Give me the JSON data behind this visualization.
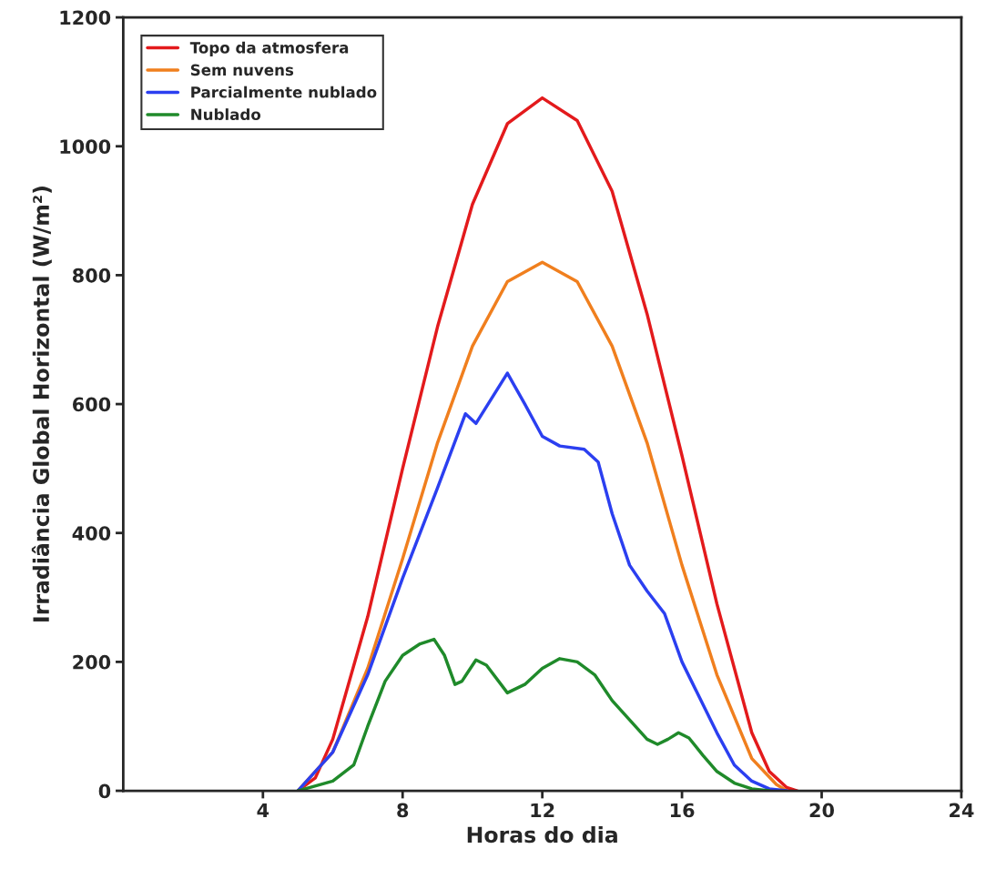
{
  "chart_data": {
    "type": "line",
    "xlabel": "Horas do dia",
    "ylabel": "Irradiância Global Horizontal (W/m²)",
    "xlim": [
      0,
      24
    ],
    "ylim": [
      0,
      1200
    ],
    "xticks": [
      4,
      8,
      12,
      16,
      20,
      24
    ],
    "yticks": [
      0,
      200,
      400,
      600,
      800,
      1000,
      1200
    ],
    "grid": false,
    "legend": "top left",
    "marker": "none",
    "line_style": "solid",
    "series": [
      {
        "name": "Topo da atmosfera",
        "color": "#e31a1c",
        "x": [
          5,
          5.5,
          6,
          7,
          8,
          9,
          10,
          11,
          12,
          13,
          14,
          15,
          16,
          17,
          18,
          18.5,
          19,
          19.3
        ],
        "values": [
          0,
          20,
          80,
          270,
          500,
          720,
          910,
          1035,
          1075,
          1040,
          930,
          740,
          520,
          290,
          90,
          30,
          5,
          0
        ]
      },
      {
        "name": "Sem nuvens",
        "color": "#f07f1e",
        "x": [
          5,
          6,
          7,
          8,
          9,
          10,
          11,
          12,
          13,
          14,
          15,
          16,
          17,
          18,
          18.7,
          19
        ],
        "values": [
          0,
          60,
          190,
          360,
          540,
          690,
          790,
          820,
          790,
          690,
          540,
          350,
          180,
          50,
          10,
          0
        ]
      },
      {
        "name": "Parcialmente nublado",
        "color": "#2b3ff0",
        "x": [
          5,
          6,
          7,
          8,
          9,
          9.8,
          10.1,
          11,
          11.5,
          12,
          12.5,
          13.2,
          13.6,
          14,
          14.5,
          15,
          15.5,
          16,
          17,
          17.5,
          18,
          18.5,
          19
        ],
        "values": [
          0,
          60,
          180,
          330,
          470,
          585,
          570,
          648,
          600,
          550,
          535,
          530,
          510,
          430,
          350,
          310,
          275,
          200,
          90,
          40,
          15,
          3,
          0
        ]
      },
      {
        "name": "Nublado",
        "color": "#1f8a2a",
        "x": [
          5,
          6,
          6.6,
          7,
          7.5,
          8,
          8.5,
          8.9,
          9.2,
          9.5,
          9.7,
          10.1,
          10.4,
          11,
          11.5,
          12,
          12.5,
          13,
          13.5,
          14,
          14.5,
          15,
          15.3,
          15.6,
          15.9,
          16.2,
          16.6,
          17,
          17.5,
          18,
          18.5
        ],
        "values": [
          0,
          15,
          40,
          100,
          170,
          210,
          228,
          235,
          210,
          165,
          170,
          203,
          195,
          152,
          165,
          190,
          205,
          200,
          180,
          140,
          110,
          80,
          72,
          80,
          90,
          82,
          55,
          30,
          12,
          3,
          0
        ]
      }
    ]
  }
}
